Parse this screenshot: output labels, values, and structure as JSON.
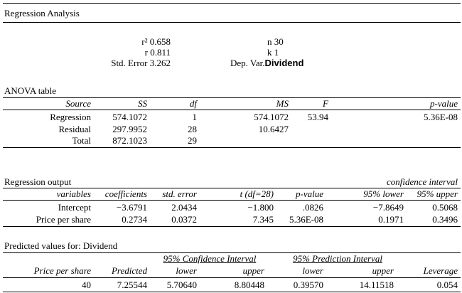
{
  "header": {
    "title": "Regression Analysis"
  },
  "summary": {
    "r2": "r² 0.658",
    "r": "r 0.811",
    "std_error": "Std. Error 3.262",
    "n": "n 30",
    "k": "k 1",
    "dep_var_label": "Dep. Var.",
    "dep_var_value": "Dividend"
  },
  "anova": {
    "title": "ANOVA table",
    "headers": [
      "Source",
      "SS",
      "df",
      "MS",
      "F",
      "p-value"
    ],
    "rows": [
      [
        "Regression",
        "574.1072",
        "1",
        "574.1072",
        "53.94",
        "5.36E-08"
      ],
      [
        "Residual",
        "297.9952",
        "28",
        "10.6427",
        "",
        ""
      ],
      [
        "Total",
        "872.1023",
        "29",
        "",
        "",
        ""
      ]
    ]
  },
  "regression": {
    "title": "Regression output",
    "ci_label": "confidence interval",
    "headers": [
      "variables",
      "coefficients",
      "std. error",
      "t (df=28)",
      "p-value",
      "95% lower",
      "95% upper"
    ],
    "rows": [
      [
        "Intercept",
        "−3.6791",
        "2.0434",
        "−1.800",
        ".0826",
        "−7.8649",
        "0.5068"
      ],
      [
        "Price per share",
        "0.2734",
        "0.0372",
        "7.345",
        "5.36E-08",
        "0.1971",
        "0.3496"
      ]
    ]
  },
  "predicted": {
    "title": "Predicted values for: Dividend",
    "ci_label": "95% Confidence Interval",
    "pi_label": "95% Prediction Interval",
    "headers": [
      "Price per share",
      "Predicted",
      "lower",
      "upper",
      "lower",
      "upper",
      "Leverage"
    ],
    "rows": [
      [
        "40",
        "7.25544",
        "5.70640",
        "8.80448",
        "0.39570",
        "14.11518",
        "0.054"
      ]
    ]
  }
}
